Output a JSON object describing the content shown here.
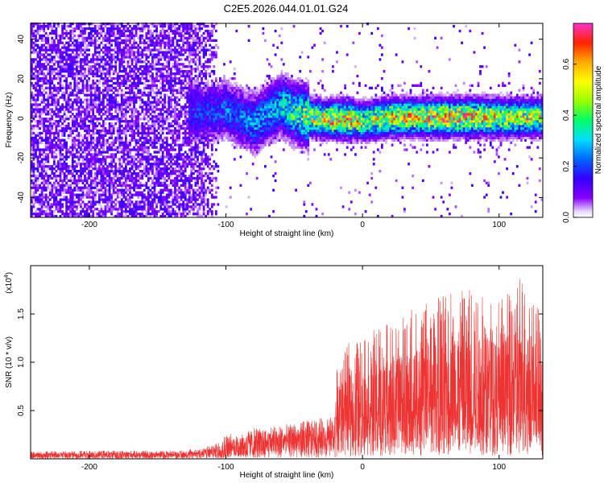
{
  "title": "C2E5.2026.044.01.01.G24",
  "chart_data": [
    {
      "type": "heatmap",
      "xlabel": "Height of straight line (km)",
      "ylabel": "Frequency (Hz)",
      "xlim": [
        -243,
        132
      ],
      "ylim": [
        -50,
        48
      ],
      "x_ticks": [
        -200,
        -100,
        0,
        100
      ],
      "x_tick_labels": [
        "-200",
        "-100",
        "0",
        "100"
      ],
      "y_ticks": [
        -40,
        -20,
        0,
        20,
        40
      ],
      "y_tick_labels": [
        "-40",
        "-20",
        "0",
        "20",
        "40"
      ],
      "colorbar": {
        "label": "Normalized spectral amplitude",
        "range": [
          0.0,
          0.76
        ],
        "ticks": [
          0.0,
          0.2,
          0.4,
          0.6
        ],
        "tick_labels": [
          "0.0",
          "0.2",
          "0.4",
          "0.6"
        ]
      },
      "noise_region_x": [
        -243,
        -105
      ],
      "signal_track": {
        "x": [
          -120,
          -100,
          -90,
          -80,
          -70,
          -60,
          -50,
          -40,
          -30,
          -20,
          -10,
          0,
          10,
          20,
          40,
          60,
          80,
          100,
          132
        ],
        "freq": [
          2,
          4,
          0,
          -3,
          2,
          6,
          2,
          0,
          -1,
          -1,
          -1,
          -2,
          -1,
          0,
          0,
          0,
          0,
          0,
          0
        ],
        "peak_amplitude": [
          0.2,
          0.25,
          0.25,
          0.3,
          0.3,
          0.35,
          0.45,
          0.55,
          0.6,
          0.7,
          0.7,
          0.5,
          0.55,
          0.65,
          0.6,
          0.7,
          0.65,
          0.6,
          0.55
        ]
      }
    },
    {
      "type": "line",
      "xlabel": "Height of straight line (km)",
      "ylabel": "SNR (10 * v/v)",
      "multiplier_label": "(x10",
      "multiplier_exp": "4",
      "xlim": [
        -243,
        132
      ],
      "ylim": [
        0,
        20000
      ],
      "x_ticks": [
        -200,
        -100,
        0,
        100
      ],
      "x_tick_labels": [
        "-200",
        "-100",
        "0",
        "100"
      ],
      "y_ticks": [
        5000,
        10000,
        15000
      ],
      "y_tick_labels": [
        "0.5",
        "1.0",
        "1.5"
      ],
      "color": "#ee3333",
      "envelope": {
        "x": [
          -243,
          -130,
          -110,
          -100,
          -80,
          -60,
          -40,
          -20,
          -19,
          -10,
          0,
          20,
          40,
          60,
          80,
          100,
          120,
          132
        ],
        "mean": [
          400,
          450,
          700,
          1100,
          1600,
          1900,
          2100,
          2400,
          4500,
          5000,
          5000,
          5500,
          6000,
          6200,
          6500,
          6800,
          7200,
          6500
        ],
        "max": [
          800,
          900,
          1400,
          2500,
          3200,
          3500,
          4000,
          4500,
          9500,
          12000,
          13000,
          14000,
          16000,
          17500,
          18500,
          16500,
          19500,
          14000
        ]
      }
    }
  ]
}
